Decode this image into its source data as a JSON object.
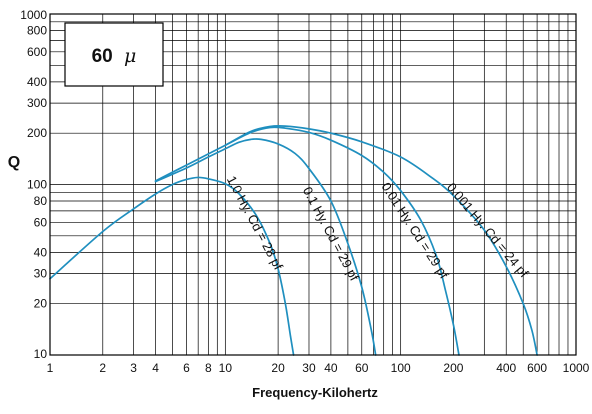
{
  "chart_data": {
    "type": "line",
    "title_box": {
      "text": "60",
      "symbol": "μ"
    },
    "xlabel": "Frequency-Kilohertz",
    "ylabel": "Q",
    "x_scale": "log",
    "y_scale": "log",
    "xlim": [
      1,
      1000
    ],
    "ylim": [
      10,
      1000
    ],
    "grid": true,
    "line_color": "#1f8fbf",
    "x_ticks": [
      {
        "value": 1,
        "label": "1"
      },
      {
        "value": 2,
        "label": "2"
      },
      {
        "value": 3,
        "label": "3"
      },
      {
        "value": 4,
        "label": "4"
      },
      {
        "value": 6,
        "label": "6"
      },
      {
        "value": 8,
        "label": "8"
      },
      {
        "value": 10,
        "label": "10"
      },
      {
        "value": 20,
        "label": "20"
      },
      {
        "value": 30,
        "label": "30"
      },
      {
        "value": 40,
        "label": "40"
      },
      {
        "value": 60,
        "label": "60"
      },
      {
        "value": 100,
        "label": "100"
      },
      {
        "value": 200,
        "label": "200"
      },
      {
        "value": 400,
        "label": "400"
      },
      {
        "value": 600,
        "label": "600"
      },
      {
        "value": 1000,
        "label": "1000"
      }
    ],
    "x_gridlines": [
      1,
      2,
      3,
      4,
      5,
      6,
      7,
      8,
      9,
      10,
      20,
      30,
      40,
      50,
      60,
      70,
      80,
      90,
      100,
      200,
      300,
      400,
      500,
      600,
      700,
      800,
      900,
      1000
    ],
    "y_ticks": [
      {
        "value": 10,
        "label": "10"
      },
      {
        "value": 20,
        "label": "20"
      },
      {
        "value": 30,
        "label": "30"
      },
      {
        "value": 40,
        "label": "40"
      },
      {
        "value": 60,
        "label": "60"
      },
      {
        "value": 80,
        "label": "80"
      },
      {
        "value": 100,
        "label": "100"
      },
      {
        "value": 200,
        "label": "200"
      },
      {
        "value": 300,
        "label": "300"
      },
      {
        "value": 400,
        "label": "400"
      },
      {
        "value": 600,
        "label": "600"
      },
      {
        "value": 800,
        "label": "800"
      },
      {
        "value": 1000,
        "label": "1000"
      }
    ],
    "y_gridlines": [
      10,
      20,
      30,
      40,
      50,
      60,
      70,
      80,
      90,
      100,
      200,
      300,
      400,
      500,
      600,
      700,
      800,
      900,
      1000
    ],
    "series": [
      {
        "name": "1.0 Hy. Cd = 28 pf",
        "points": [
          [
            1,
            28
          ],
          [
            2,
            53
          ],
          [
            3,
            72
          ],
          [
            4,
            88
          ],
          [
            5,
            100
          ],
          [
            6,
            107
          ],
          [
            7,
            110
          ],
          [
            8,
            108
          ],
          [
            10,
            101
          ],
          [
            12,
            88
          ],
          [
            15,
            66
          ],
          [
            18,
            45
          ],
          [
            20,
            32
          ],
          [
            22,
            20
          ],
          [
            23.5,
            13
          ],
          [
            24.5,
            10
          ]
        ]
      },
      {
        "name": "0.1 Hy. Cd = 29 pf",
        "points": [
          [
            4,
            104
          ],
          [
            6,
            125
          ],
          [
            8,
            145
          ],
          [
            10,
            162
          ],
          [
            12,
            177
          ],
          [
            14,
            184
          ],
          [
            16,
            184
          ],
          [
            20,
            173
          ],
          [
            25,
            152
          ],
          [
            30,
            124
          ],
          [
            40,
            80
          ],
          [
            50,
            45
          ],
          [
            60,
            25
          ],
          [
            68,
            14
          ],
          [
            72,
            10
          ]
        ]
      },
      {
        "name": "0.01 Hy. Cd = 29 pf",
        "points": [
          [
            4,
            105
          ],
          [
            6,
            130
          ],
          [
            10,
            170
          ],
          [
            14,
            202
          ],
          [
            18,
            216
          ],
          [
            22,
            214
          ],
          [
            30,
            202
          ],
          [
            40,
            182
          ],
          [
            60,
            148
          ],
          [
            80,
            118
          ],
          [
            100,
            92
          ],
          [
            130,
            62
          ],
          [
            160,
            38
          ],
          [
            180,
            24
          ],
          [
            200,
            15
          ],
          [
            215,
            10
          ]
        ]
      },
      {
        "name": "0.001 Hy. Cd = 24 pf",
        "points": [
          [
            10,
            170
          ],
          [
            14,
            205
          ],
          [
            18,
            219
          ],
          [
            22,
            220
          ],
          [
            30,
            212
          ],
          [
            40,
            200
          ],
          [
            60,
            178
          ],
          [
            100,
            145
          ],
          [
            150,
            110
          ],
          [
            200,
            86
          ],
          [
            300,
            54
          ],
          [
            400,
            33
          ],
          [
            500,
            20
          ],
          [
            560,
            14
          ],
          [
            600,
            10
          ]
        ]
      }
    ],
    "curve_labels": [
      {
        "series": 0,
        "text": "1.0 Hy. Cd = 28 pf",
        "at": [
          14.0,
          58
        ],
        "angle": 62
      },
      {
        "series": 1,
        "text": "0.1 Hy. Cd = 29 pf",
        "at": [
          38.0,
          50
        ],
        "angle": 62
      },
      {
        "series": 2,
        "text": "0.01 Hy. Cd = 29 pf",
        "at": [
          115,
          52
        ],
        "angle": 57
      },
      {
        "series": 3,
        "text": "0.001 Hy. Cd = 24 pf",
        "at": [
          300,
          52
        ],
        "angle": 50
      }
    ]
  }
}
